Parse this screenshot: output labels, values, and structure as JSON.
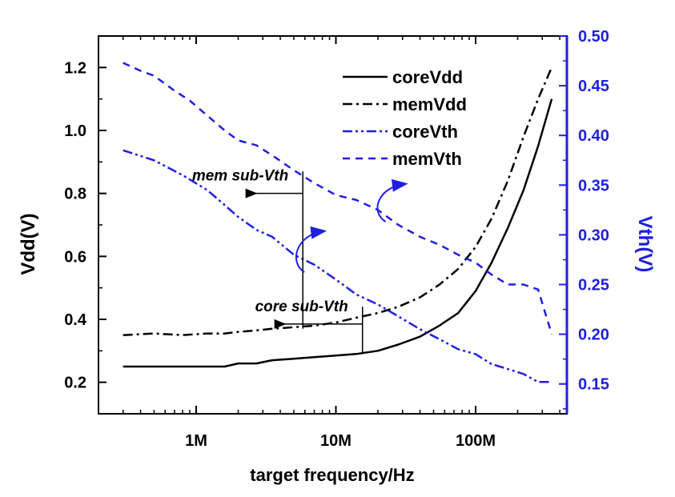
{
  "chart_data": {
    "type": "line",
    "xscale": "log",
    "xlabel": "target frequency/Hz",
    "ylabel": "Vdd(V)",
    "y2label": "Vth(V)",
    "xlim": [
      200000,
      450000000
    ],
    "ylim": [
      0.1,
      1.3
    ],
    "y2lim": [
      0.12,
      0.5
    ],
    "xticks": [
      {
        "value": 1000000,
        "label": "1M"
      },
      {
        "value": 10000000,
        "label": "10M"
      },
      {
        "value": 100000000,
        "label": "100M"
      }
    ],
    "yticks": [
      {
        "value": 0.2,
        "label": "0.2"
      },
      {
        "value": 0.4,
        "label": "0.4"
      },
      {
        "value": 0.6,
        "label": "0.6"
      },
      {
        "value": 0.8,
        "label": "0.8"
      },
      {
        "value": 1.0,
        "label": "1.0"
      },
      {
        "value": 1.2,
        "label": "1.2"
      }
    ],
    "y2ticks": [
      {
        "value": 0.15,
        "label": "0.15"
      },
      {
        "value": 0.2,
        "label": "0.20"
      },
      {
        "value": 0.25,
        "label": "0.25"
      },
      {
        "value": 0.3,
        "label": "0.30"
      },
      {
        "value": 0.35,
        "label": "0.35"
      },
      {
        "value": 0.4,
        "label": "0.40"
      },
      {
        "value": 0.45,
        "label": "0.45"
      },
      {
        "value": 0.5,
        "label": "0.50"
      }
    ],
    "legend_position": "top-right",
    "series": [
      {
        "name": "coreVdd",
        "axis": "left",
        "color": "#000000",
        "dash": "solid",
        "x": [
          300000,
          500000,
          800000,
          1200000,
          1600000,
          2000000,
          2700000,
          3500000,
          5000000,
          7000000,
          10000000,
          14000000,
          20000000,
          28000000,
          40000000,
          55000000,
          75000000,
          100000000,
          130000000,
          170000000,
          220000000,
          280000000,
          350000000
        ],
        "y": [
          0.25,
          0.25,
          0.25,
          0.25,
          0.25,
          0.26,
          0.26,
          0.27,
          0.275,
          0.28,
          0.285,
          0.29,
          0.3,
          0.32,
          0.345,
          0.38,
          0.42,
          0.49,
          0.58,
          0.69,
          0.81,
          0.95,
          1.1
        ]
      },
      {
        "name": "memVdd",
        "axis": "left",
        "color": "#000000",
        "dash": "dashdot",
        "x": [
          300000,
          500000,
          800000,
          1200000,
          1600000,
          2000000,
          2700000,
          3500000,
          5000000,
          7000000,
          10000000,
          14000000,
          20000000,
          28000000,
          40000000,
          55000000,
          75000000,
          100000000,
          130000000,
          170000000,
          220000000,
          280000000,
          350000000
        ],
        "y": [
          0.35,
          0.355,
          0.35,
          0.355,
          0.355,
          0.36,
          0.365,
          0.37,
          0.375,
          0.38,
          0.39,
          0.405,
          0.42,
          0.44,
          0.47,
          0.51,
          0.56,
          0.63,
          0.72,
          0.84,
          0.98,
          1.1,
          1.2
        ]
      },
      {
        "name": "coreVth",
        "axis": "right",
        "color": "#1f1fe0",
        "dash": "dashdotdot",
        "x": [
          300000,
          500000,
          800000,
          1200000,
          1600000,
          2000000,
          2700000,
          3500000,
          5000000,
          7000000,
          10000000,
          14000000,
          20000000,
          28000000,
          40000000,
          55000000,
          75000000,
          100000000,
          130000000,
          170000000,
          220000000,
          280000000,
          350000000
        ],
        "y": [
          0.385,
          0.375,
          0.36,
          0.345,
          0.33,
          0.318,
          0.305,
          0.298,
          0.28,
          0.27,
          0.255,
          0.24,
          0.23,
          0.218,
          0.205,
          0.195,
          0.185,
          0.18,
          0.17,
          0.165,
          0.16,
          0.152,
          0.152
        ]
      },
      {
        "name": "memVth",
        "axis": "right",
        "color": "#1f1fe0",
        "dash": "dash",
        "x": [
          300000,
          400000,
          500000,
          700000,
          900000,
          1200000,
          1600000,
          2000000,
          2700000,
          3500000,
          5000000,
          7000000,
          10000000,
          14000000,
          20000000,
          28000000,
          40000000,
          55000000,
          75000000,
          100000000,
          130000000,
          170000000,
          220000000,
          280000000,
          350000000
        ],
        "y": [
          0.473,
          0.465,
          0.46,
          0.445,
          0.435,
          0.42,
          0.405,
          0.395,
          0.39,
          0.38,
          0.365,
          0.352,
          0.34,
          0.335,
          0.325,
          0.31,
          0.298,
          0.29,
          0.28,
          0.272,
          0.26,
          0.25,
          0.25,
          0.245,
          0.2
        ]
      }
    ],
    "annotations": [
      {
        "text": "mem sub-Vth",
        "at_x": 5800000,
        "line_from_y": 0.87,
        "line_to_y": 0.37,
        "arrow_to_x": 2300000,
        "arrow_y": 0.8
      },
      {
        "text": "core sub-Vth",
        "at_x": 15500000,
        "line_from_y": 0.44,
        "line_to_y": 0.29,
        "arrow_to_x": 3700000,
        "arrow_y": 0.385
      }
    ],
    "curved_arrows": [
      {
        "x": 5500000,
        "y_start": 0.55,
        "y_end": 0.68
      },
      {
        "x": 21000000,
        "y_start": 0.71,
        "y_end": 0.83
      }
    ]
  }
}
